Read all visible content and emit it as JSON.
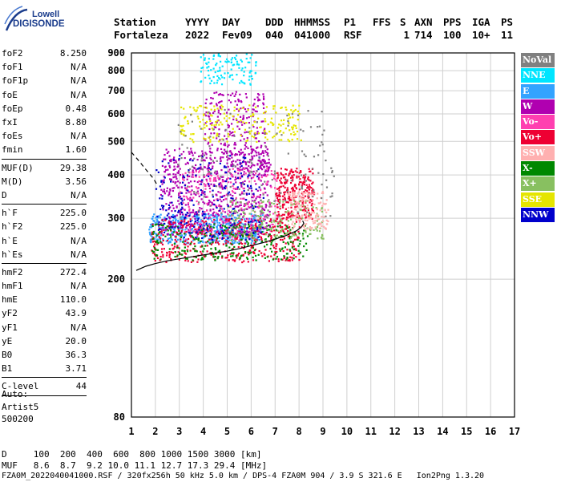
{
  "logo": {
    "line1": "Lowell",
    "line2": "DIGISONDE"
  },
  "header": {
    "labels": [
      "Station",
      "YYYY",
      "DAY",
      "DDD",
      "HHMMSS",
      "P1",
      "FFS",
      "S",
      "AXN",
      "PPS",
      "IGA",
      "PS"
    ],
    "values": [
      "Fortaleza",
      "2022",
      "Fev09",
      "040",
      "041000",
      "RSF",
      "",
      "1",
      "714",
      "100",
      "10+",
      "11"
    ]
  },
  "params": {
    "group1": [
      {
        "name": "foF2",
        "value": "8.250"
      },
      {
        "name": "foF1",
        "value": "N/A"
      },
      {
        "name": "foF1p",
        "value": "N/A"
      },
      {
        "name": "foE",
        "value": "N/A"
      },
      {
        "name": "foEp",
        "value": "0.48"
      },
      {
        "name": "fxI",
        "value": "8.80"
      },
      {
        "name": "foEs",
        "value": "N/A"
      },
      {
        "name": "fmin",
        "value": "1.60"
      }
    ],
    "group2": [
      {
        "name": "MUF(D)",
        "value": "29.38"
      },
      {
        "name": "M(D)",
        "value": "3.56"
      },
      {
        "name": "D",
        "value": "N/A"
      }
    ],
    "group3": [
      {
        "name": "h`F",
        "value": "225.0"
      },
      {
        "name": "h`F2",
        "value": "225.0"
      },
      {
        "name": "h`E",
        "value": "N/A"
      },
      {
        "name": "h`Es",
        "value": "N/A"
      }
    ],
    "group4": [
      {
        "name": "hmF2",
        "value": "272.4"
      },
      {
        "name": "hmF1",
        "value": "N/A"
      },
      {
        "name": "hmE",
        "value": "110.0"
      },
      {
        "name": "yF2",
        "value": "43.9"
      },
      {
        "name": "yF1",
        "value": "N/A"
      },
      {
        "name": "yE",
        "value": "20.0"
      },
      {
        "name": "B0",
        "value": "36.3"
      },
      {
        "name": "B1",
        "value": "3.71"
      }
    ],
    "group5": [
      {
        "name": "C-level",
        "value": "44"
      }
    ]
  },
  "auto": {
    "line1": "Auto:",
    "line2": "Artist5",
    "line3": "500200"
  },
  "legend": [
    {
      "label": "NoVal",
      "color": "#808080"
    },
    {
      "label": "NNE",
      "color": "#00e5ff"
    },
    {
      "label": "E",
      "color": "#33a3ff"
    },
    {
      "label": "W",
      "color": "#b000b0"
    },
    {
      "label": "Vo-",
      "color": "#ff3fb0"
    },
    {
      "label": "Vo+",
      "color": "#ee0033"
    },
    {
      "label": "SSW",
      "color": "#ffb0b0"
    },
    {
      "label": "X-",
      "color": "#008800"
    },
    {
      "label": "X+",
      "color": "#88c060"
    },
    {
      "label": "SSE",
      "color": "#e5e500"
    },
    {
      "label": "NNW",
      "color": "#0000cc"
    }
  ],
  "footer": {
    "line1": "D     100  200  400  600  800 1000 1500 3000 [km]",
    "line2": "MUF   8.6  8.7  9.2 10.0 11.1 12.7 17.3 29.4 [MHz]",
    "line3": "FZA0M_2022040041000.RSF / 320fx256h 50 kHz 5.0 km / DPS-4 FZA0M 904 / 3.9 S 321.6 E   Ion2Png 1.3.20"
  },
  "chart_data": {
    "type": "scatter",
    "title": "",
    "xlabel": "",
    "ylabel": "",
    "xlim": [
      1,
      17
    ],
    "ylim": [
      80,
      900
    ],
    "y_scale": "log",
    "x_ticks": [
      1,
      2,
      3,
      4,
      5,
      6,
      7,
      8,
      9,
      10,
      11,
      12,
      13,
      14,
      15,
      16,
      17
    ],
    "y_ticks": [
      80,
      200,
      300,
      400,
      500,
      600,
      700,
      800,
      900
    ],
    "grid": true,
    "traces": [
      {
        "name": "virtual-height-trace",
        "style": "solid",
        "x": [
          1.2,
          1.6,
          2.0,
          2.5,
          3.0,
          3.5,
          4.0,
          4.5,
          5.0,
          5.5,
          6.0,
          6.5,
          7.0,
          7.5,
          7.9,
          8.1,
          8.2,
          8.15
        ],
        "y": [
          212,
          218,
          222,
          226,
          229,
          232,
          235,
          238,
          241,
          245,
          250,
          255,
          261,
          268,
          276,
          283,
          290,
          295
        ]
      },
      {
        "name": "profile-dashed",
        "style": "dashed",
        "x": [
          1.0,
          1.3,
          1.6,
          1.9,
          2.1
        ],
        "y": [
          465,
          440,
          415,
          392,
          372
        ]
      }
    ],
    "echo_clusters": [
      {
        "color": "#33a3ff",
        "x": [
          1.7,
          6.5
        ],
        "y": [
          255,
          310
        ],
        "n": 520
      },
      {
        "color": "#b000b0",
        "x": [
          2.2,
          6.8
        ],
        "y": [
          270,
          480
        ],
        "n": 650
      },
      {
        "color": "#b000b0",
        "x": [
          4.0,
          6.6
        ],
        "y": [
          400,
          700
        ],
        "n": 260
      },
      {
        "color": "#ff3fb0",
        "x": [
          3.0,
          7.2
        ],
        "y": [
          260,
          420
        ],
        "n": 260
      },
      {
        "color": "#ee0033",
        "x": [
          1.8,
          8.0
        ],
        "y": [
          225,
          300
        ],
        "n": 420
      },
      {
        "color": "#ee0033",
        "x": [
          7.0,
          8.6
        ],
        "y": [
          300,
          420
        ],
        "n": 260
      },
      {
        "color": "#008800",
        "x": [
          1.8,
          8.4
        ],
        "y": [
          228,
          290
        ],
        "n": 260
      },
      {
        "color": "#88c060",
        "x": [
          5.0,
          9.0
        ],
        "y": [
          260,
          340
        ],
        "n": 180
      },
      {
        "color": "#e5e500",
        "x": [
          3.0,
          8.1
        ],
        "y": [
          500,
          640
        ],
        "n": 200
      },
      {
        "color": "#ffb0b0",
        "x": [
          7.5,
          9.2
        ],
        "y": [
          280,
          360
        ],
        "n": 150
      },
      {
        "color": "#00e5ff",
        "x": [
          3.8,
          6.2
        ],
        "y": [
          730,
          900
        ],
        "n": 110
      },
      {
        "color": "#0000cc",
        "x": [
          2.0,
          6.5
        ],
        "y": [
          260,
          460
        ],
        "n": 220
      },
      {
        "color": "#808080",
        "x": [
          2.9,
          9.5
        ],
        "y": [
          300,
          620
        ],
        "n": 160
      }
    ]
  }
}
